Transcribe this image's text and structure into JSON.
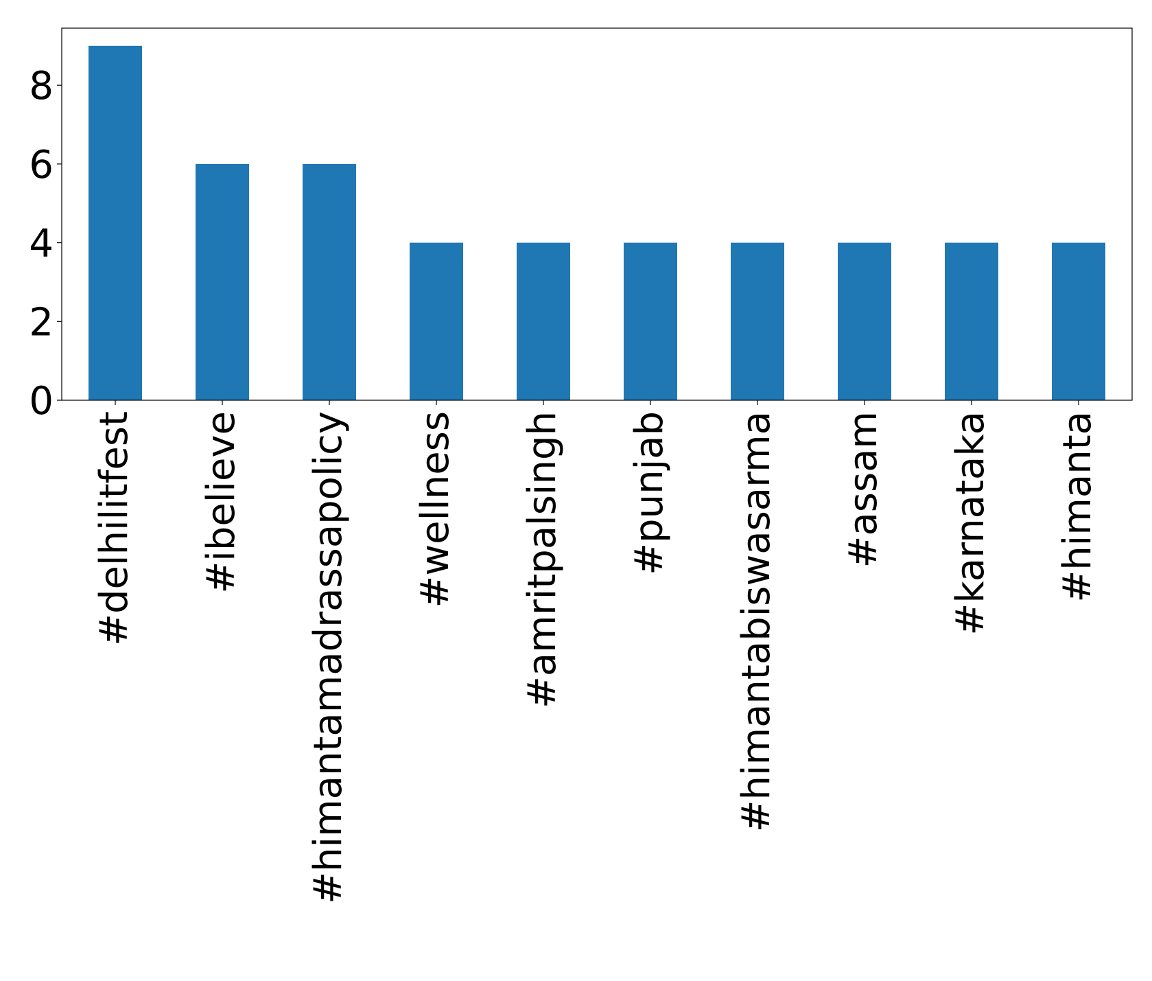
{
  "chart_data": {
    "type": "bar",
    "categories": [
      "#delhilitfest",
      "#ibelieve",
      "#himantamadrassapolicy",
      "#wellness",
      "#amritpalsingh",
      "#punjab",
      "#himantabiswasarma",
      "#assam",
      "#karnataka",
      "#himanta"
    ],
    "values": [
      9,
      6,
      6,
      4,
      4,
      4,
      4,
      4,
      4,
      4
    ],
    "yticks": [
      0,
      2,
      4,
      6,
      8
    ],
    "ylim": [
      0,
      9.45
    ],
    "bar_color": "#1f77b4",
    "title": "",
    "xlabel": "",
    "ylabel": "",
    "grid": false,
    "legend": "none"
  }
}
